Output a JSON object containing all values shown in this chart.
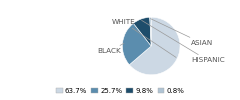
{
  "labels": [
    "WHITE",
    "BLACK",
    "HISPANIC",
    "ASIAN"
  ],
  "values": [
    63.7,
    25.7,
    9.8,
    0.8
  ],
  "colors": [
    "#ccd8e4",
    "#5b8dae",
    "#1e4d6b",
    "#b0c4d4"
  ],
  "legend_labels": [
    "63.7%",
    "25.7%",
    "9.8%",
    "0.8%"
  ],
  "startangle": 90,
  "font_size": 5.2,
  "label_color": "#555555",
  "line_color": "#999999"
}
